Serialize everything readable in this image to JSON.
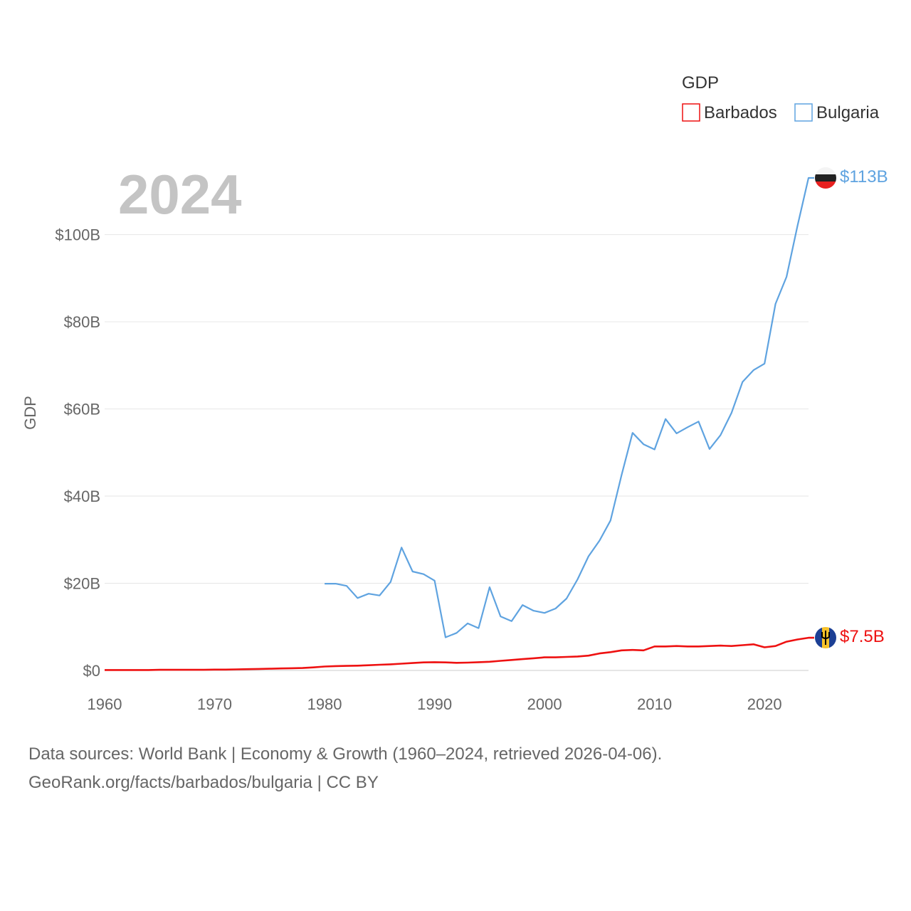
{
  "chart_data": {
    "type": "line",
    "title": "GDP",
    "year_label": "2024",
    "xlabel": "",
    "ylabel": "GDP",
    "xlim": [
      1960,
      2024
    ],
    "ylim": [
      0,
      113
    ],
    "x_ticks": [
      1960,
      1970,
      1980,
      1990,
      2000,
      2010,
      2020
    ],
    "y_ticks": [
      0,
      20,
      40,
      60,
      80,
      100
    ],
    "y_tick_labels": [
      "$0",
      "$20B",
      "$40B",
      "$60B",
      "$80B",
      "$100B"
    ],
    "grid": true,
    "legend": {
      "title": "GDP",
      "position": "top-right"
    },
    "series": [
      {
        "name": "Barbados",
        "color": "#ee1111",
        "end_label": "$7.5B",
        "flag_icon": "barbados-flag-icon",
        "x": [
          1960,
          1961,
          1962,
          1963,
          1964,
          1965,
          1966,
          1967,
          1968,
          1969,
          1970,
          1971,
          1972,
          1973,
          1974,
          1975,
          1976,
          1977,
          1978,
          1979,
          1980,
          1981,
          1982,
          1983,
          1984,
          1985,
          1986,
          1987,
          1988,
          1989,
          1990,
          1991,
          1992,
          1993,
          1994,
          1995,
          1996,
          1997,
          1998,
          1999,
          2000,
          2001,
          2002,
          2003,
          2004,
          2005,
          2006,
          2007,
          2008,
          2009,
          2010,
          2011,
          2012,
          2013,
          2014,
          2015,
          2016,
          2017,
          2018,
          2019,
          2020,
          2021,
          2022,
          2023,
          2024
        ],
        "values": [
          0.1,
          0.1,
          0.1,
          0.1,
          0.1,
          0.15,
          0.15,
          0.15,
          0.15,
          0.15,
          0.2,
          0.2,
          0.25,
          0.3,
          0.35,
          0.4,
          0.45,
          0.5,
          0.55,
          0.7,
          0.9,
          1.0,
          1.05,
          1.1,
          1.2,
          1.3,
          1.4,
          1.55,
          1.7,
          1.85,
          1.9,
          1.85,
          1.75,
          1.8,
          1.9,
          2.0,
          2.2,
          2.4,
          2.6,
          2.8,
          3.0,
          3.0,
          3.1,
          3.2,
          3.4,
          3.9,
          4.2,
          4.6,
          4.7,
          4.6,
          5.5,
          5.5,
          5.6,
          5.5,
          5.5,
          5.6,
          5.7,
          5.6,
          5.8,
          6.0,
          5.3,
          5.6,
          6.6,
          7.1,
          7.5
        ]
      },
      {
        "name": "Bulgaria",
        "color": "#5fa3e0",
        "end_label": "$113B",
        "flag_icon": "bulgaria-flag-icon",
        "x": [
          1980,
          1981,
          1982,
          1983,
          1984,
          1985,
          1986,
          1987,
          1988,
          1989,
          1990,
          1991,
          1992,
          1993,
          1994,
          1995,
          1996,
          1997,
          1998,
          1999,
          2000,
          2001,
          2002,
          2003,
          2004,
          2005,
          2006,
          2007,
          2008,
          2009,
          2010,
          2011,
          2012,
          2013,
          2014,
          2015,
          2016,
          2017,
          2018,
          2019,
          2020,
          2021,
          2022,
          2023,
          2024
        ],
        "values": [
          19.9,
          19.9,
          19.4,
          16.6,
          17.6,
          17.2,
          20.3,
          28.2,
          22.7,
          22.1,
          20.6,
          7.6,
          8.6,
          10.8,
          9.7,
          19.1,
          12.4,
          11.3,
          15.0,
          13.7,
          13.2,
          14.2,
          16.5,
          20.9,
          26.2,
          29.8,
          34.4,
          44.8,
          54.5,
          51.9,
          50.7,
          57.7,
          54.4,
          55.8,
          57.1,
          50.8,
          54.0,
          59.1,
          66.2,
          68.9,
          70.4,
          84.1,
          90.3,
          102.0,
          113.0
        ]
      }
    ]
  },
  "footer": {
    "line1": "Data sources: World Bank | Economy & Growth (1960–2024, retrieved 2026-04-06).",
    "line2": "GeoRank.org/facts/barbados/bulgaria | CC BY"
  }
}
